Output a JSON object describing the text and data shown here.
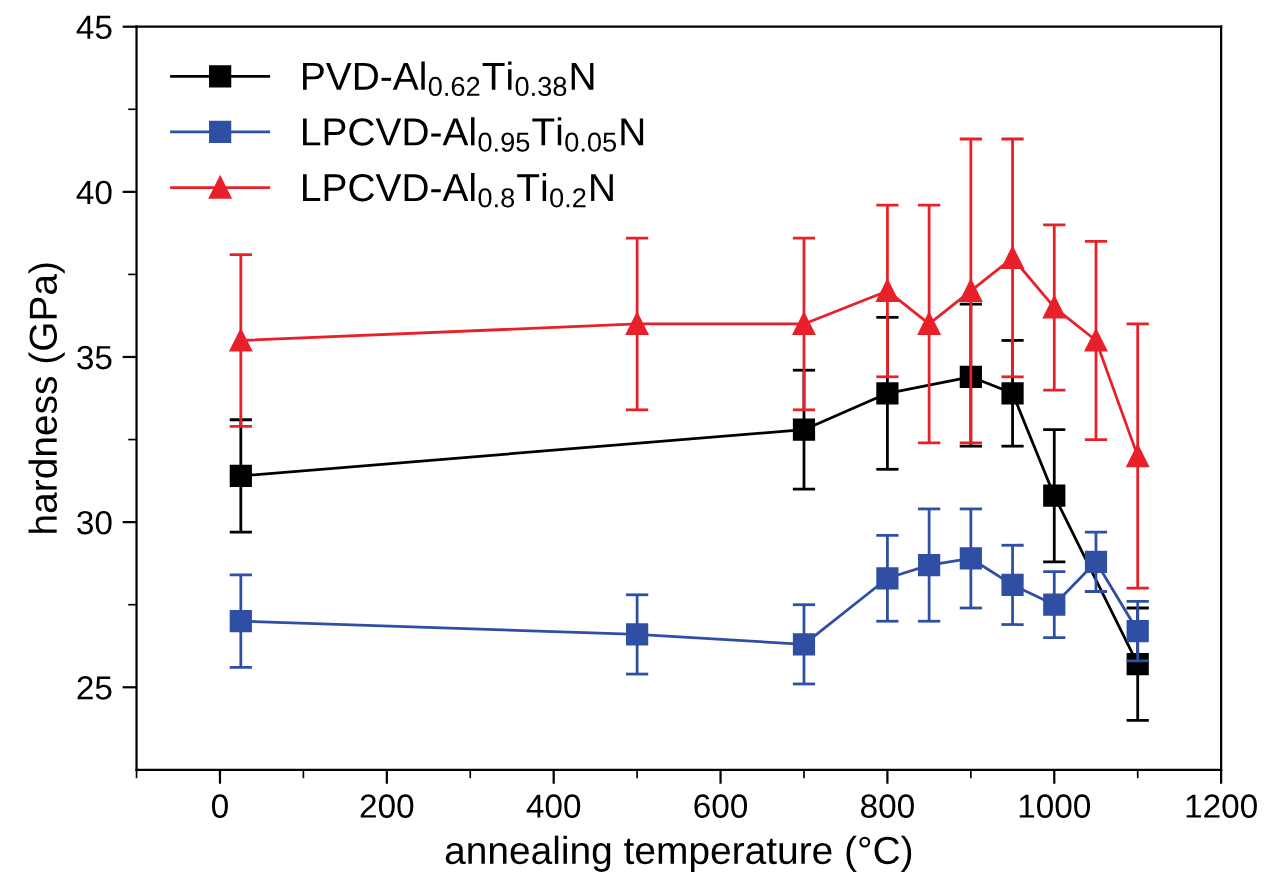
{
  "chart_data": {
    "type": "line",
    "xlabel": "annealing temperature (°C)",
    "ylabel": "hardness (GPa)",
    "xlim": [
      -100,
      1200
    ],
    "ylim": [
      22.5,
      45
    ],
    "xticks": [
      0,
      {
        "value": 100,
        "label": null
      },
      200,
      {
        "value": 300,
        "label": null
      },
      400,
      {
        "value": 500,
        "label": null
      },
      600,
      {
        "value": 700,
        "label": null
      },
      800,
      {
        "value": 900,
        "label": null
      },
      1000,
      {
        "value": 1100,
        "label": null
      },
      1200,
      {
        "value": -100,
        "label": null
      }
    ],
    "yticks": [
      25,
      {
        "value": 27.5,
        "label": null
      },
      30,
      {
        "value": 32.5,
        "label": null
      },
      35,
      {
        "value": 37.5,
        "label": null
      },
      40,
      {
        "value": 42.5,
        "label": null
      },
      45
    ],
    "grid": false,
    "legend": "top left",
    "series": [
      {
        "name": "PVD-Al$_{0.62}$Ti$_{0.38}$N",
        "color": "#000000",
        "marker": "square",
        "x": [
          25,
          700,
          800,
          900,
          950,
          1000,
          1100
        ],
        "values": [
          31.4,
          32.8,
          33.9,
          34.4,
          33.9,
          30.8,
          25.7
        ],
        "errors": [
          [
            29.7,
            33.1
          ],
          [
            31.0,
            34.6
          ],
          [
            31.6,
            36.2
          ],
          [
            32.3,
            36.6
          ],
          [
            32.3,
            35.5
          ],
          [
            28.8,
            32.8
          ],
          [
            24.0,
            27.4
          ]
        ]
      },
      {
        "name": "LPCVD-Al$_{0.95}$Ti$_{0.05}$N",
        "color": "#2e4fa3",
        "marker": "square",
        "x": [
          25,
          500,
          700,
          800,
          850,
          900,
          950,
          1000,
          1050,
          1100
        ],
        "values": [
          27.0,
          26.6,
          26.3,
          28.3,
          28.7,
          28.9,
          28.1,
          27.5,
          28.8,
          26.7
        ],
        "errors": [
          [
            25.6,
            28.4
          ],
          [
            25.4,
            27.8
          ],
          [
            25.1,
            27.5
          ],
          [
            27.0,
            29.6
          ],
          [
            27.0,
            30.4
          ],
          [
            27.4,
            30.4
          ],
          [
            26.9,
            29.3
          ],
          [
            26.5,
            28.5
          ],
          [
            27.9,
            29.7
          ],
          [
            25.8,
            27.6
          ]
        ]
      },
      {
        "name": "LPCVD-Al$_{0.8}$Ti$_{0.2}$N",
        "color": "#e8202a",
        "marker": "triangle",
        "x": [
          25,
          500,
          700,
          800,
          850,
          900,
          950,
          1000,
          1050,
          1100
        ],
        "values": [
          35.5,
          36.0,
          36.0,
          37.0,
          36.0,
          37.0,
          38.0,
          36.5,
          35.5,
          32.0
        ],
        "errors": [
          [
            32.9,
            38.1
          ],
          [
            33.4,
            38.6
          ],
          [
            33.4,
            38.6
          ],
          [
            34.4,
            39.6
          ],
          [
            32.4,
            39.6
          ],
          [
            32.4,
            41.6
          ],
          [
            34.4,
            41.6
          ],
          [
            34.0,
            39.0
          ],
          [
            32.5,
            38.5
          ],
          [
            28.0,
            36.0
          ]
        ]
      }
    ]
  }
}
